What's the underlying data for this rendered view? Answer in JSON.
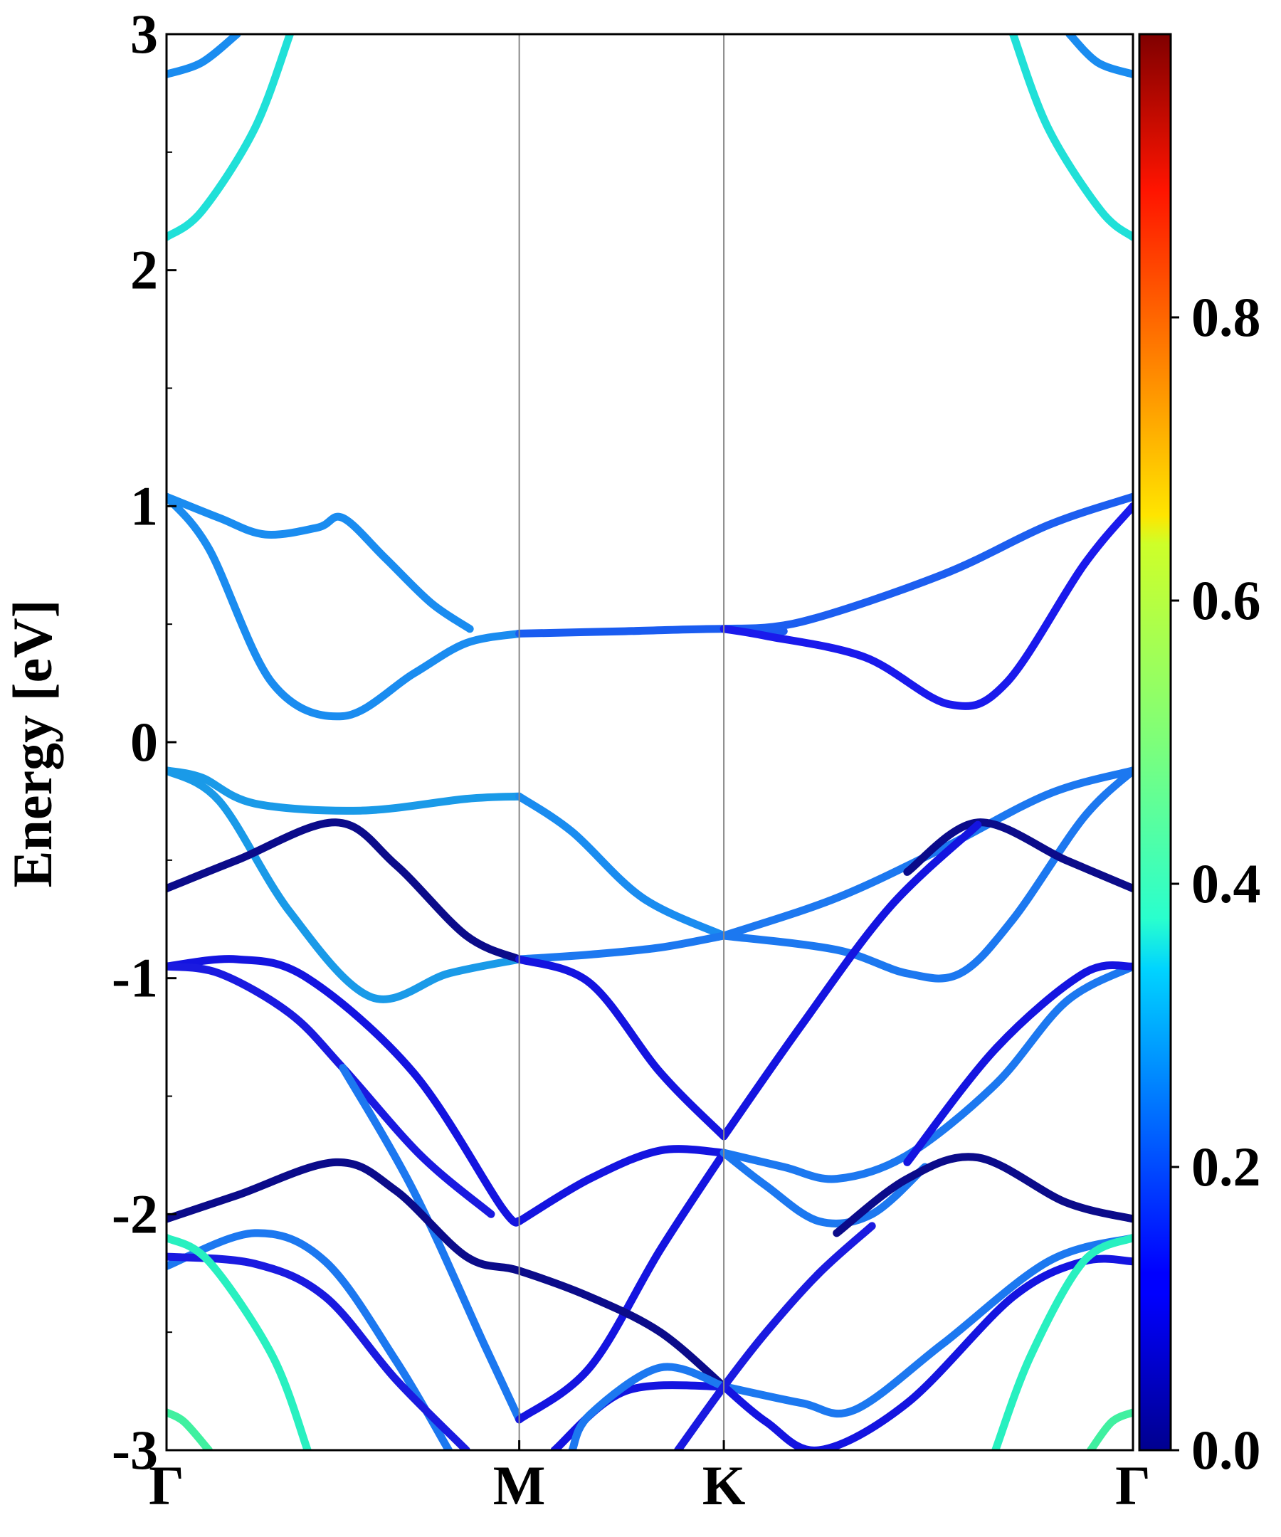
{
  "chart_data": {
    "type": "line",
    "ylabel": "Energy [eV]",
    "ylim": [
      -3,
      3
    ],
    "yticks": [
      "3",
      "2",
      "1",
      "0",
      "-1",
      "-2",
      "-3"
    ],
    "x_labels": [
      "Γ",
      "M",
      "K",
      "Γ"
    ],
    "colorbar": {
      "range": [
        0,
        1
      ],
      "ticks": [
        "0.0",
        "0.2",
        "0.4",
        "0.6",
        "0.8"
      ],
      "colormap": "jet"
    },
    "series": [
      {
        "color": "#1a8cf0",
        "points": [
          [
            0,
            1.04
          ],
          [
            0.15,
            0.95
          ],
          [
            0.28,
            0.88
          ],
          [
            0.43,
            0.91
          ],
          [
            0.5,
            0.95
          ],
          [
            0.62,
            0.78
          ],
          [
            0.75,
            0.59
          ],
          [
            0.86,
            0.48
          ]
        ]
      },
      {
        "color": "#1a8cf0",
        "points": [
          [
            0,
            1.04
          ],
          [
            0.12,
            0.82
          ],
          [
            0.3,
            0.25
          ],
          [
            0.5,
            0.11
          ],
          [
            0.7,
            0.29
          ],
          [
            0.85,
            0.42
          ],
          [
            1,
            0.46
          ]
        ]
      },
      {
        "color": "#1a5cf0",
        "points": [
          [
            1,
            0.46
          ],
          [
            1.3,
            0.47
          ],
          [
            1.58,
            0.48
          ],
          [
            1.75,
            0.47
          ]
        ]
      },
      {
        "color": "#1c5ef0",
        "points": [
          [
            1.58,
            0.48
          ],
          [
            1.8,
            0.51
          ],
          [
            2.2,
            0.71
          ],
          [
            2.5,
            0.92
          ],
          [
            2.74,
            1.04
          ]
        ]
      },
      {
        "color": "#1a1aec",
        "points": [
          [
            1.58,
            0.48
          ],
          [
            1.7,
            0.45
          ],
          [
            1.98,
            0.36
          ],
          [
            2.22,
            0.16
          ],
          [
            2.38,
            0.25
          ],
          [
            2.6,
            0.75
          ],
          [
            2.74,
            1.0
          ]
        ]
      },
      {
        "color": "#1a9ae8",
        "points": [
          [
            0,
            -0.12
          ],
          [
            0.1,
            -0.15
          ],
          [
            0.25,
            -0.26
          ],
          [
            0.55,
            -0.29
          ],
          [
            0.85,
            -0.24
          ],
          [
            1,
            -0.23
          ]
        ]
      },
      {
        "color": "#1a8cf0",
        "points": [
          [
            1,
            -0.23
          ],
          [
            1.15,
            -0.38
          ],
          [
            1.35,
            -0.66
          ],
          [
            1.58,
            -0.82
          ]
        ]
      },
      {
        "color": "#1c78f0",
        "points": [
          [
            1.58,
            -0.82
          ],
          [
            1.9,
            -0.88
          ],
          [
            2.1,
            -0.98
          ],
          [
            2.25,
            -0.98
          ],
          [
            2.4,
            -0.75
          ],
          [
            2.6,
            -0.32
          ],
          [
            2.74,
            -0.12
          ]
        ]
      },
      {
        "color": "#1a9ae8",
        "points": [
          [
            0,
            -0.12
          ],
          [
            0.15,
            -0.25
          ],
          [
            0.35,
            -0.72
          ],
          [
            0.58,
            -1.08
          ],
          [
            0.8,
            -0.98
          ],
          [
            1,
            -0.92
          ]
        ]
      },
      {
        "color": "#1c78f0",
        "points": [
          [
            1,
            -0.92
          ],
          [
            1.2,
            -0.9
          ],
          [
            1.4,
            -0.87
          ],
          [
            1.58,
            -0.82
          ]
        ]
      },
      {
        "color": "#1c78f0",
        "points": [
          [
            1.58,
            -0.82
          ],
          [
            1.9,
            -0.66
          ],
          [
            2.2,
            -0.45
          ],
          [
            2.5,
            -0.22
          ],
          [
            2.74,
            -0.12
          ]
        ]
      },
      {
        "color": "#0b0b8a",
        "points": [
          [
            0,
            -0.62
          ],
          [
            0.2,
            -0.5
          ],
          [
            0.48,
            -0.34
          ],
          [
            0.65,
            -0.52
          ],
          [
            0.85,
            -0.82
          ],
          [
            1,
            -0.92
          ]
        ]
      },
      {
        "color": "#0b0b8a",
        "points": [
          [
            2.74,
            -0.62
          ],
          [
            2.55,
            -0.5
          ],
          [
            2.3,
            -0.34
          ],
          [
            2.1,
            -0.55
          ]
        ]
      },
      {
        "color": "#1414e0",
        "points": [
          [
            1,
            -0.92
          ],
          [
            1.2,
            -1.02
          ],
          [
            1.4,
            -1.4
          ],
          [
            1.58,
            -1.67
          ]
        ]
      },
      {
        "color": "#1414e0",
        "points": [
          [
            1.58,
            -1.67
          ],
          [
            1.8,
            -1.2
          ],
          [
            2.05,
            -0.7
          ],
          [
            2.3,
            -0.35
          ]
        ]
      },
      {
        "color": "#1414e0",
        "points": [
          [
            0,
            -0.95
          ],
          [
            0.2,
            -0.92
          ],
          [
            0.4,
            -1.0
          ],
          [
            0.7,
            -1.4
          ],
          [
            0.95,
            -1.97
          ],
          [
            1,
            -2.03
          ]
        ]
      },
      {
        "color": "#1414e0",
        "points": [
          [
            1,
            -2.03
          ],
          [
            1.2,
            -1.85
          ],
          [
            1.4,
            -1.73
          ],
          [
            1.58,
            -1.74
          ]
        ]
      },
      {
        "color": "#1a1ae0",
        "points": [
          [
            0,
            -0.95
          ],
          [
            0.15,
            -0.98
          ],
          [
            0.35,
            -1.15
          ],
          [
            0.5,
            -1.38
          ],
          [
            0.72,
            -1.75
          ],
          [
            0.92,
            -2.0
          ]
        ]
      },
      {
        "color": "#1c78f0",
        "points": [
          [
            0.5,
            -1.38
          ],
          [
            0.7,
            -1.9
          ],
          [
            0.9,
            -2.55
          ],
          [
            1,
            -2.87
          ]
        ]
      },
      {
        "color": "#1414e0",
        "points": [
          [
            1,
            -2.87
          ],
          [
            1.2,
            -2.65
          ],
          [
            1.4,
            -2.15
          ],
          [
            1.58,
            -1.74
          ]
        ]
      },
      {
        "color": "#1c78f0",
        "points": [
          [
            1.58,
            -1.74
          ],
          [
            1.75,
            -1.8
          ],
          [
            1.9,
            -1.85
          ],
          [
            2.1,
            -1.75
          ],
          [
            2.35,
            -1.45
          ],
          [
            2.55,
            -1.1
          ],
          [
            2.74,
            -0.95
          ]
        ]
      },
      {
        "color": "#1414e0",
        "points": [
          [
            2.74,
            -0.95
          ],
          [
            2.6,
            -0.98
          ],
          [
            2.35,
            -1.3
          ],
          [
            2.1,
            -1.78
          ]
        ]
      },
      {
        "color": "#1c78f0",
        "points": [
          [
            1.58,
            -1.74
          ],
          [
            1.7,
            -1.88
          ],
          [
            1.85,
            -2.03
          ],
          [
            2.0,
            -2.0
          ],
          [
            2.15,
            -1.8
          ]
        ]
      },
      {
        "color": "#0b0b8a",
        "points": [
          [
            0,
            -2.02
          ],
          [
            0.2,
            -1.92
          ],
          [
            0.48,
            -1.78
          ],
          [
            0.65,
            -1.9
          ],
          [
            0.85,
            -2.18
          ],
          [
            1,
            -2.24
          ],
          [
            1.2,
            -2.35
          ],
          [
            1.4,
            -2.5
          ],
          [
            1.58,
            -2.73
          ]
        ]
      },
      {
        "color": "#0b0b8a",
        "points": [
          [
            2.74,
            -2.02
          ],
          [
            2.55,
            -1.95
          ],
          [
            2.3,
            -1.76
          ],
          [
            2.1,
            -1.85
          ],
          [
            1.9,
            -2.08
          ]
        ]
      },
      {
        "color": "#1c78f0",
        "points": [
          [
            0,
            -2.22
          ],
          [
            0.25,
            -2.08
          ],
          [
            0.45,
            -2.2
          ],
          [
            0.65,
            -2.62
          ],
          [
            0.8,
            -3.0
          ]
        ]
      },
      {
        "color": "#1a1ae0",
        "points": [
          [
            0,
            -2.18
          ],
          [
            0.25,
            -2.21
          ],
          [
            0.45,
            -2.35
          ],
          [
            0.65,
            -2.7
          ],
          [
            0.85,
            -3.0
          ]
        ]
      },
      {
        "color": "#1414e0",
        "points": [
          [
            1.1,
            -3.0
          ],
          [
            1.3,
            -2.75
          ],
          [
            1.58,
            -2.73
          ]
        ]
      },
      {
        "color": "#1c78f0",
        "points": [
          [
            1.58,
            -2.73
          ],
          [
            1.8,
            -2.8
          ],
          [
            1.95,
            -2.83
          ],
          [
            2.2,
            -2.55
          ],
          [
            2.5,
            -2.2
          ],
          [
            2.74,
            -2.1
          ]
        ]
      },
      {
        "color": "#1414e0",
        "points": [
          [
            1.58,
            -2.73
          ],
          [
            1.7,
            -2.88
          ],
          [
            1.85,
            -3.0
          ],
          [
            2.1,
            -2.8
          ],
          [
            2.4,
            -2.35
          ],
          [
            2.6,
            -2.2
          ],
          [
            2.74,
            -2.2
          ]
        ]
      },
      {
        "color": "#1c78f0",
        "points": [
          [
            1.58,
            -2.73
          ],
          [
            1.4,
            -2.65
          ],
          [
            1.2,
            -2.85
          ],
          [
            1.15,
            -3.0
          ]
        ]
      },
      {
        "color": "#1a1ae0",
        "points": [
          [
            1.45,
            -3.0
          ],
          [
            1.58,
            -2.73
          ],
          [
            1.7,
            -2.5
          ],
          [
            1.85,
            -2.25
          ],
          [
            2.0,
            -2.05
          ]
        ]
      },
      {
        "color": "#20e0d8",
        "points": [
          [
            0,
            2.14
          ],
          [
            0.1,
            2.25
          ],
          [
            0.25,
            2.6
          ],
          [
            0.35,
            3.0
          ]
        ]
      },
      {
        "color": "#20e0d8",
        "points": [
          [
            2.74,
            2.14
          ],
          [
            2.65,
            2.25
          ],
          [
            2.5,
            2.6
          ],
          [
            2.4,
            3.0
          ]
        ]
      },
      {
        "color": "#1a8cf0",
        "points": [
          [
            0,
            2.83
          ],
          [
            0.1,
            2.88
          ],
          [
            0.2,
            3.0
          ]
        ]
      },
      {
        "color": "#1a8cf0",
        "points": [
          [
            2.74,
            2.83
          ],
          [
            2.64,
            2.88
          ],
          [
            2.56,
            3.0
          ]
        ]
      },
      {
        "color": "#28f0c0",
        "points": [
          [
            0,
            -2.1
          ],
          [
            0.12,
            -2.2
          ],
          [
            0.3,
            -2.6
          ],
          [
            0.4,
            -3.0
          ]
        ]
      },
      {
        "color": "#28f0c0",
        "points": [
          [
            2.74,
            -2.1
          ],
          [
            2.6,
            -2.2
          ],
          [
            2.45,
            -2.6
          ],
          [
            2.35,
            -3.0
          ]
        ]
      },
      {
        "color": "#40f0a0",
        "points": [
          [
            0,
            -2.84
          ],
          [
            0.05,
            -2.88
          ],
          [
            0.12,
            -3.0
          ]
        ]
      },
      {
        "color": "#40f0a0",
        "points": [
          [
            2.74,
            -2.84
          ],
          [
            2.68,
            -2.88
          ],
          [
            2.62,
            -3.0
          ]
        ]
      }
    ]
  }
}
